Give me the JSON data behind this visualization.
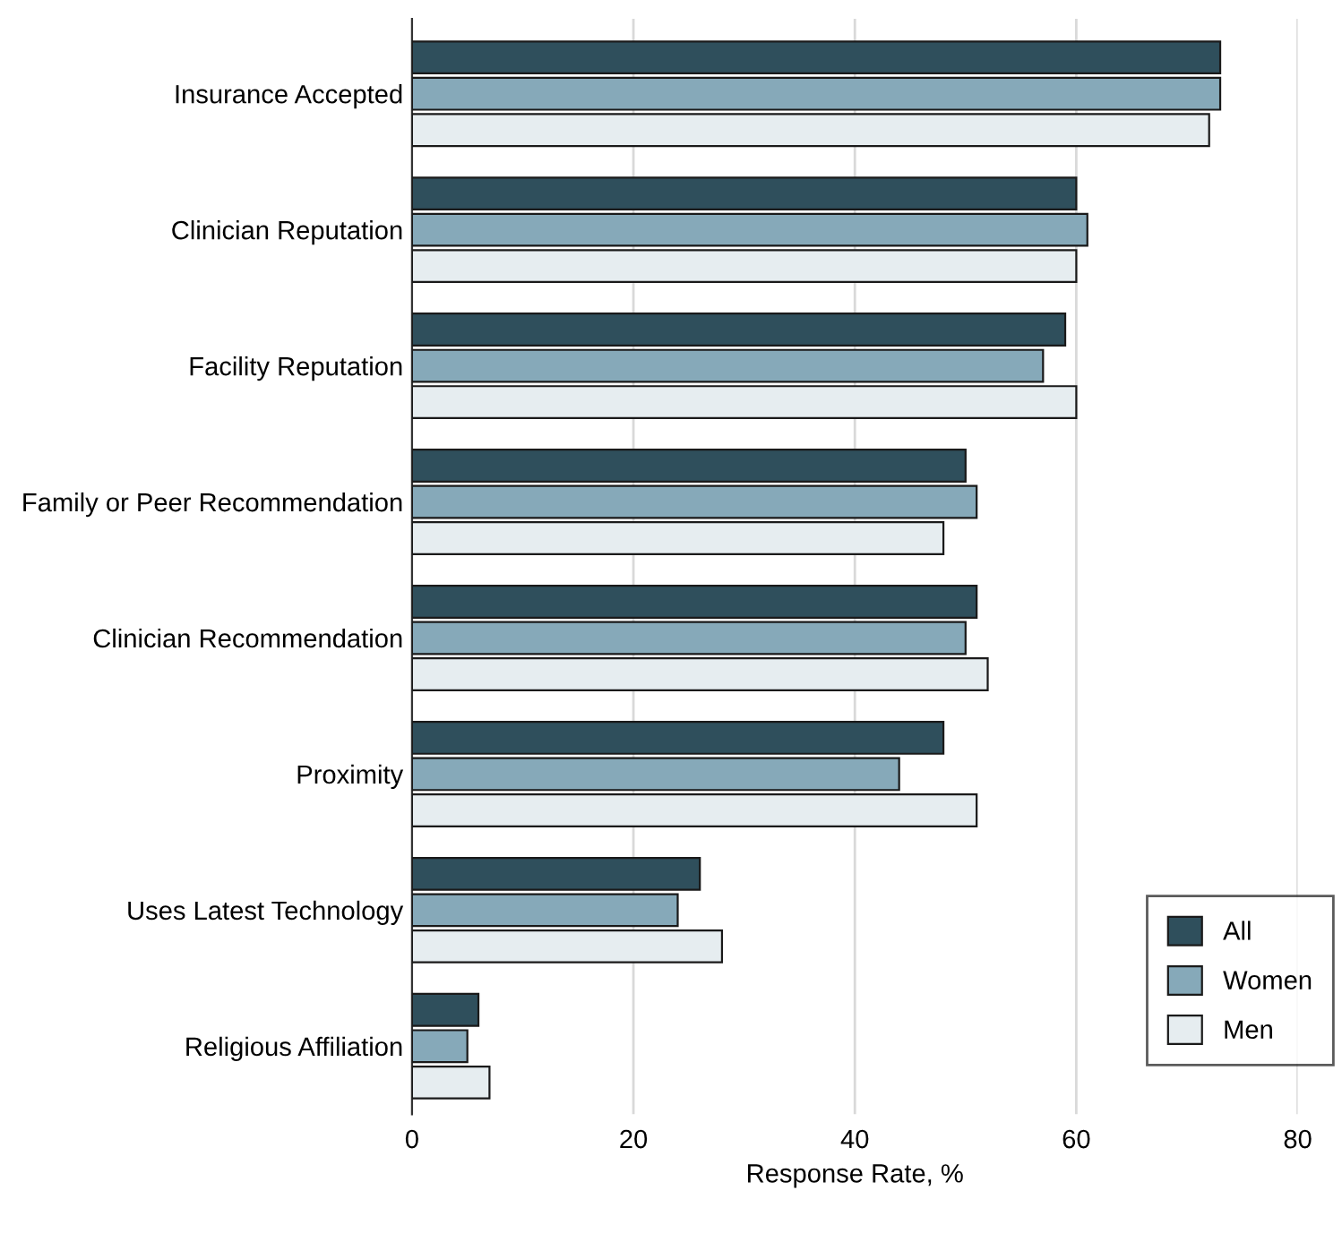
{
  "chart_data": {
    "type": "bar",
    "orientation": "horizontal",
    "xlabel": "Response Rate, %",
    "categories": [
      "Insurance Accepted",
      "Clinician Reputation",
      "Facility Reputation",
      "Family or Peer Recommendation",
      "Clinician Recommendation",
      "Proximity",
      "Uses Latest Technology",
      "Religious Affiliation"
    ],
    "series": [
      {
        "name": "All",
        "color": "#2f4f5c",
        "values": [
          73,
          60,
          59,
          50,
          51,
          48,
          26,
          6
        ]
      },
      {
        "name": "Women",
        "color": "#86a9b9",
        "values": [
          73,
          61,
          57,
          51,
          50,
          44,
          24,
          5
        ]
      },
      {
        "name": "Men",
        "color": "#e6edf0",
        "values": [
          72,
          60,
          60,
          48,
          52,
          51,
          28,
          7
        ]
      }
    ],
    "xlim": [
      0,
      80
    ],
    "xticks": [
      0,
      20,
      40,
      60,
      80
    ],
    "grid": "x",
    "legend": "bottom right"
  }
}
